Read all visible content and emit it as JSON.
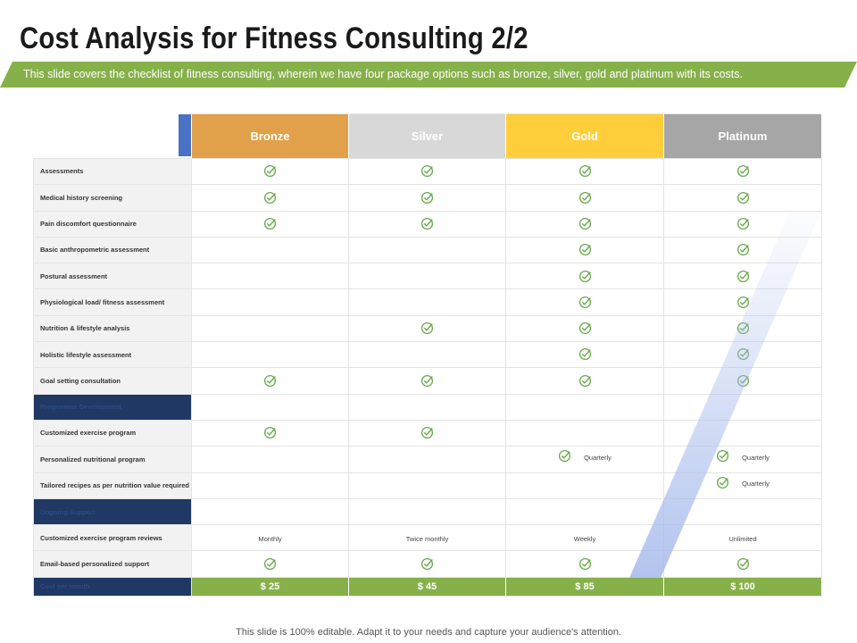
{
  "title": "Cost Analysis for Fitness Consulting 2/2",
  "subtitle": "This slide covers the checklist of fitness consulting, wherein we have four package options such as bronze, silver, gold and platinum with its costs.",
  "packages": [
    "Bronze",
    "Silver",
    "Gold",
    "Platinum"
  ],
  "rows": [
    {
      "label": "Assessments",
      "section": false,
      "values": [
        "check",
        "check",
        "check",
        "check"
      ]
    },
    {
      "label": "Medical history screening",
      "section": false,
      "values": [
        "check",
        "check",
        "check",
        "check"
      ]
    },
    {
      "label": "Pain discomfort questionnaire",
      "section": false,
      "values": [
        "check",
        "check",
        "check",
        "check"
      ]
    },
    {
      "label": "Basic anthropometric assessment",
      "section": false,
      "values": [
        "",
        "",
        "check",
        "check"
      ]
    },
    {
      "label": "Postural assessment",
      "section": false,
      "values": [
        "",
        "",
        "check",
        "check"
      ]
    },
    {
      "label": "Physiological load/ fitness assessment",
      "section": false,
      "values": [
        "",
        "",
        "check",
        "check"
      ]
    },
    {
      "label": "Nutrition & lifestyle analysis",
      "section": false,
      "values": [
        "",
        "check",
        "check",
        "check"
      ]
    },
    {
      "label": "Holistic lifestyle assessment",
      "section": false,
      "values": [
        "",
        "",
        "check",
        "check"
      ]
    },
    {
      "label": "Goal setting consultation",
      "section": false,
      "values": [
        "check",
        "check",
        "check",
        "check"
      ]
    },
    {
      "label": "Programme Development",
      "section": true,
      "values": [
        "",
        "",
        "",
        ""
      ]
    },
    {
      "label": "Customized exercise program",
      "section": false,
      "values": [
        "check",
        "check",
        "",
        ""
      ]
    },
    {
      "label": "Personalized nutritional program",
      "section": false,
      "values": [
        "",
        "",
        "check|Quarterly",
        "check|Quarterly"
      ]
    },
    {
      "label": "Tailored recipes as per nutrition value required",
      "section": false,
      "values": [
        "",
        "",
        "",
        "check|Quarterly"
      ]
    },
    {
      "label": "Ongoing Support",
      "section": true,
      "values": [
        "",
        "",
        "",
        ""
      ]
    },
    {
      "label": "Customized exercise program reviews",
      "section": false,
      "values": [
        "Monthly",
        "Twice monthly",
        "Weekly",
        "Unlimited"
      ]
    },
    {
      "label": "Email-based personalized support",
      "section": false,
      "values": [
        "check",
        "check",
        "check",
        "check"
      ]
    }
  ],
  "cost": {
    "label": "Cost per month",
    "values": [
      "$ 25",
      "$ 45",
      "$ 85",
      "$ 100"
    ]
  },
  "footer": "This slide is 100% editable. Adapt it to your needs and capture your audience's attention.",
  "icons": {
    "check": "check-circle-icon"
  },
  "colors": {
    "bronze": "#e0a14a",
    "silver": "#d8d8d8",
    "gold": "#ffce3a",
    "platinum": "#a6a6a6",
    "accent_green": "#86b04a",
    "section_navy": "#1f3864",
    "corner_blue": "#4a72c4"
  }
}
